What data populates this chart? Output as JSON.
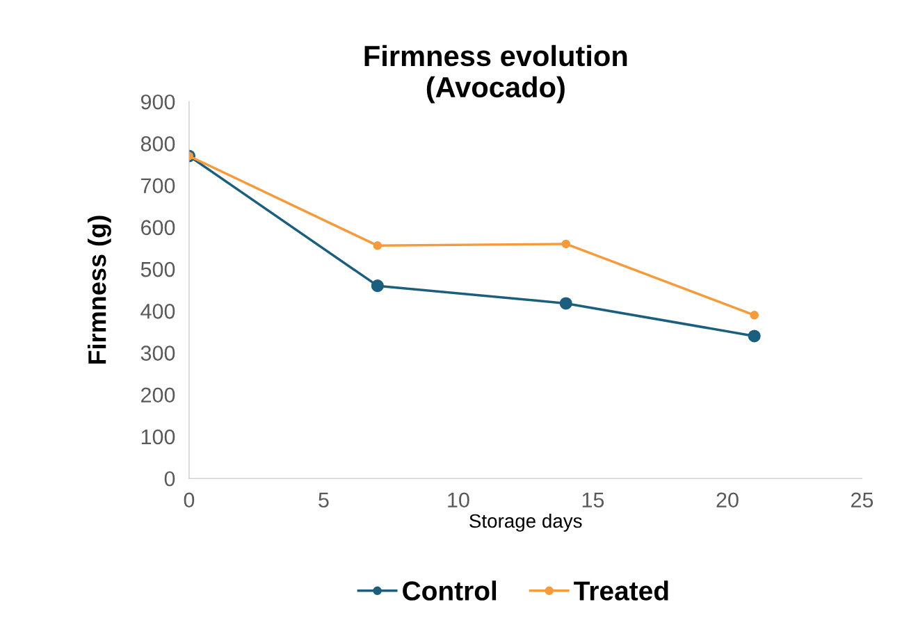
{
  "chart_data": {
    "type": "line",
    "title": "Firmness evolution\n(Avocado)",
    "xlabel": "Storage days",
    "ylabel": "Firmness (g)",
    "x": [
      0,
      7,
      14,
      21
    ],
    "series": [
      {
        "name": "Control",
        "color": "#1b5e7e",
        "values": [
          770,
          460,
          418,
          340
        ]
      },
      {
        "name": "Treated",
        "color": "#f59b3c",
        "values": [
          770,
          556,
          560,
          390
        ]
      }
    ],
    "xlim": [
      0,
      25
    ],
    "xticks": [
      0,
      5,
      10,
      15,
      20,
      25
    ],
    "ylim": [
      0,
      900
    ],
    "yticks": [
      0,
      100,
      200,
      300,
      400,
      500,
      600,
      700,
      800,
      900
    ],
    "grid": false,
    "legend": "bottom",
    "marker": "circle",
    "line_style": "solid"
  }
}
